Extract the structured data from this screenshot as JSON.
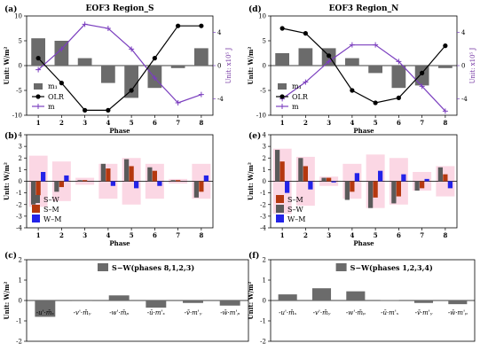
{
  "colors": {
    "gray_bar": "#6b6b6b",
    "olr_line": "#000000",
    "m_line": "#7b3fbf",
    "sw": "#5a5a5a",
    "sm": "#b5380f",
    "wm": "#2323e8",
    "pink": "#f9c6d8"
  },
  "chart_data": [
    {
      "id": "a",
      "type": "bar+line",
      "label": "(a)",
      "title": "EOF3 Region_S",
      "xlabel": "Phase",
      "ylabel_left": "Unit: W/m²",
      "ylabel_right": "Unit: x10⁵ J",
      "categories": [
        "1",
        "2",
        "3",
        "4",
        "5",
        "6",
        "7",
        "8"
      ],
      "ylim_left": [
        -10,
        10
      ],
      "yticks_left": [
        -10,
        -5,
        0,
        5,
        10
      ],
      "ylim_right": [
        -6,
        6
      ],
      "yticks_right": [
        -4,
        0,
        4
      ],
      "legend": [
        "m₁",
        "OLR",
        "m"
      ],
      "series": [
        {
          "name": "m₁",
          "kind": "bar",
          "axis": "left",
          "values": [
            5.5,
            5.0,
            1.5,
            -3.5,
            -6.5,
            -4.5,
            -0.5,
            3.5
          ]
        },
        {
          "name": "OLR",
          "kind": "line-dot",
          "axis": "left",
          "values": [
            1.5,
            -3.5,
            -9.0,
            -9.0,
            -5.0,
            1.5,
            8.0,
            8.0
          ]
        },
        {
          "name": "m",
          "kind": "line-plus",
          "axis": "right",
          "values": [
            -0.5,
            2.0,
            5.0,
            4.5,
            2.0,
            -1.5,
            -4.5,
            -3.5
          ]
        }
      ]
    },
    {
      "id": "d",
      "type": "bar+line",
      "label": "(d)",
      "title": "EOF3 Region_N",
      "xlabel": "Phase",
      "ylabel_left": "Unit: W/m²",
      "ylabel_right": "Unit: x10⁵ J",
      "categories": [
        "1",
        "2",
        "3",
        "4",
        "5",
        "6",
        "7",
        "8"
      ],
      "ylim_left": [
        -10,
        10
      ],
      "yticks_left": [
        -10,
        -5,
        0,
        5,
        10
      ],
      "ylim_right": [
        -6,
        6
      ],
      "yticks_right": [
        -4,
        0,
        4
      ],
      "legend": [
        "m₁",
        "OLR",
        "m"
      ],
      "series": [
        {
          "name": "m₁",
          "kind": "bar",
          "axis": "left",
          "values": [
            2.5,
            3.5,
            3.5,
            1.5,
            -1.5,
            -4.5,
            -4.0,
            -0.5
          ]
        },
        {
          "name": "OLR",
          "kind": "line-dot",
          "axis": "left",
          "values": [
            7.5,
            6.5,
            2.0,
            -5.0,
            -7.5,
            -6.5,
            -1.5,
            4.0
          ]
        },
        {
          "name": "m",
          "kind": "line-plus",
          "axis": "right",
          "values": [
            -4.0,
            -2.0,
            0.5,
            2.5,
            2.5,
            0.5,
            -2.5,
            -5.5
          ]
        }
      ]
    },
    {
      "id": "b",
      "type": "bar",
      "label": "(b)",
      "xlabel": "Phase",
      "ylabel": "Unit: W/m²",
      "categories": [
        "1",
        "2",
        "3",
        "4",
        "5",
        "6",
        "7",
        "8"
      ],
      "ylim": [
        -4,
        4
      ],
      "yticks": [
        -4,
        -3,
        -2,
        -1,
        0,
        1,
        2,
        3,
        4
      ],
      "legend": [
        "S–W",
        "S–M",
        "W–M"
      ],
      "envelope": [
        2.2,
        1.7,
        0.3,
        1.5,
        2.0,
        1.5,
        0.2,
        1.5
      ],
      "series": [
        {
          "name": "S–W",
          "values": [
            -2.0,
            -0.9,
            0.1,
            1.5,
            1.9,
            1.2,
            0.1,
            -1.4
          ]
        },
        {
          "name": "S–M",
          "values": [
            -1.2,
            -0.5,
            0.1,
            1.1,
            1.3,
            0.9,
            0.1,
            -0.9
          ]
        },
        {
          "name": "W–M",
          "values": [
            0.8,
            0.5,
            0.0,
            -0.4,
            -0.6,
            -0.4,
            0.0,
            0.5
          ]
        }
      ]
    },
    {
      "id": "e",
      "type": "bar",
      "label": "(e)",
      "xlabel": "Phase",
      "ylabel": "Unit: W/m²",
      "categories": [
        "1",
        "2",
        "3",
        "4",
        "5",
        "6",
        "7",
        "8"
      ],
      "ylim": [
        -4,
        4
      ],
      "yticks": [
        -4,
        -3,
        -2,
        -1,
        0,
        1,
        2,
        3,
        4
      ],
      "legend": [
        "S–M",
        "S–W",
        "W–M"
      ],
      "envelope": [
        2.8,
        2.1,
        0.4,
        1.5,
        2.3,
        2.0,
        0.8,
        1.3
      ],
      "series": [
        {
          "name": "S–W",
          "values": [
            2.7,
            2.0,
            0.3,
            -1.6,
            -2.3,
            -1.9,
            -0.8,
            1.2
          ]
        },
        {
          "name": "S–M",
          "values": [
            1.7,
            1.3,
            0.3,
            -0.9,
            -1.4,
            -1.3,
            -0.6,
            0.6
          ]
        },
        {
          "name": "W–M",
          "values": [
            -1.0,
            -0.7,
            -0.1,
            0.7,
            0.9,
            0.6,
            0.2,
            -0.6
          ]
        }
      ]
    },
    {
      "id": "c",
      "type": "bar",
      "label": "(c)",
      "ylabel": "Unit: W/m²",
      "legend": "S−W(phases 8,1,2,3)",
      "categories": [
        "-u'·m̄ₓ",
        "-v'·m̄ᵧ",
        "-w'·m̄ₚ",
        "-ū·m'ₓ",
        "-v̄·m'ᵧ",
        "-w̄·m'ₚ"
      ],
      "ylim": [
        -2,
        2
      ],
      "yticks": [
        -2,
        -1,
        0,
        1,
        2
      ],
      "values": [
        -0.8,
        -0.02,
        0.25,
        -0.35,
        -0.12,
        -0.25
      ]
    },
    {
      "id": "f",
      "type": "bar",
      "label": "(f)",
      "ylabel": "Unit: W/m²",
      "legend": "S−W(phases 1,2,3,4)",
      "categories": [
        "-u'·m̄ₓ",
        "-v'·m̄ᵧ",
        "-w'·m̄ₚ",
        "-ū·m'ₓ",
        "-v̄·m'ᵧ",
        "-w̄·m'ₚ"
      ],
      "ylim": [
        -2,
        2
      ],
      "yticks": [
        -2,
        -1,
        0,
        1,
        2
      ],
      "values": [
        0.3,
        0.6,
        0.45,
        0.02,
        -0.12,
        -0.18
      ]
    }
  ]
}
